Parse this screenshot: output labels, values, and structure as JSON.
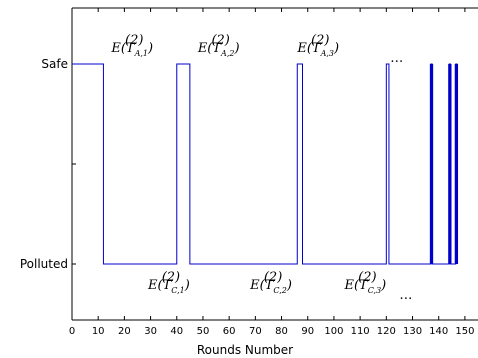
{
  "chart_data": {
    "type": "line",
    "xlabel": "Rounds Number",
    "x_ticks": [
      0,
      10,
      20,
      30,
      40,
      50,
      60,
      70,
      80,
      90,
      100,
      110,
      120,
      130,
      140,
      150
    ],
    "xlim": [
      0,
      155
    ],
    "y_categories": [
      "Polluted",
      "Safe"
    ],
    "ylim": [
      -0.28,
      1.28
    ],
    "series": [
      {
        "color": "#0000cc",
        "step_points": [
          [
            0,
            1
          ],
          [
            12,
            1
          ],
          [
            12,
            0
          ],
          [
            40,
            0
          ],
          [
            40,
            1
          ],
          [
            45,
            1
          ],
          [
            45,
            0
          ],
          [
            86,
            0
          ],
          [
            86,
            1
          ],
          [
            88,
            1
          ],
          [
            88,
            0
          ],
          [
            120,
            0
          ],
          [
            120,
            1
          ],
          [
            121,
            1
          ],
          [
            121,
            0
          ],
          [
            137,
            0
          ],
          [
            137,
            1
          ],
          [
            137.5,
            1
          ],
          [
            137.5,
            0
          ],
          [
            144,
            0
          ],
          [
            144,
            1
          ],
          [
            144.5,
            1
          ],
          [
            144.5,
            0
          ],
          [
            146.5,
            0
          ],
          [
            146.5,
            1
          ],
          [
            147,
            1
          ],
          [
            147,
            0
          ]
        ]
      }
    ],
    "annotations_safe": [
      {
        "text": "E(T",
        "sup": "(2)",
        "sub": "A,1",
        "close": ")",
        "x": 23
      },
      {
        "text": "E(T",
        "sup": "(2)",
        "sub": "A,2",
        "close": ")",
        "x": 56
      },
      {
        "text": "E(T",
        "sup": "(2)",
        "sub": "A,3",
        "close": ")",
        "x": 94
      }
    ],
    "annotations_polluted": [
      {
        "text": "E(T",
        "sup": "(2)",
        "sub": "C,1",
        "close": ")",
        "x": 37
      },
      {
        "text": "E(T",
        "sup": "(2)",
        "sub": "C,2",
        "close": ")",
        "x": 76
      },
      {
        "text": "E(T",
        "sup": "(2)",
        "sub": "C,3",
        "close": ")",
        "x": 112
      }
    ],
    "ellipsis": "…"
  }
}
